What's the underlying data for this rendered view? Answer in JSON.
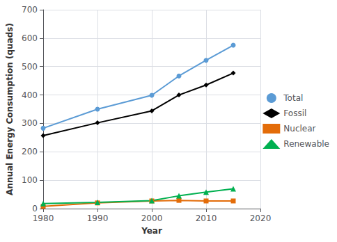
{
  "chart_data": {
    "type": "line",
    "xlabel": "Year",
    "ylabel": "Annual Energy Consumption (quads)",
    "x": [
      1980,
      1990,
      2000,
      2005,
      2010,
      2015
    ],
    "series": [
      {
        "name": "Total",
        "color": "#5B9BD5",
        "marker": "circle",
        "values": [
          283,
          350,
          399,
          467,
          522,
          575
        ]
      },
      {
        "name": "Fossil",
        "color": "#000000",
        "marker": "diamond",
        "values": [
          257,
          302,
          344,
          400,
          435,
          477
        ]
      },
      {
        "name": "Nuclear",
        "color": "#E36C09",
        "marker": "square",
        "values": [
          8,
          20,
          27,
          29,
          27,
          27
        ]
      },
      {
        "name": "Renewable",
        "color": "#00B050",
        "marker": "triangle",
        "values": [
          18,
          22,
          28,
          45,
          58,
          70
        ]
      }
    ],
    "xlim": [
      1980,
      2020
    ],
    "xticks": [
      1980,
      1990,
      2000,
      2010,
      2020
    ],
    "ylim": [
      0,
      700
    ],
    "yticks": [
      0,
      100,
      200,
      300,
      400,
      500,
      600,
      700
    ],
    "grid": true,
    "legend": "right"
  }
}
